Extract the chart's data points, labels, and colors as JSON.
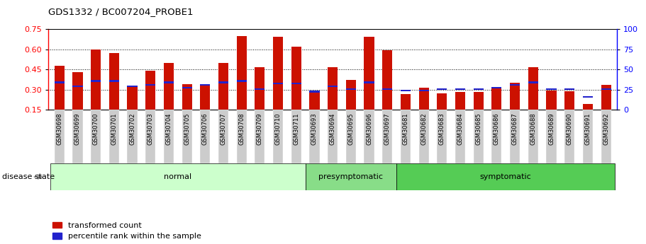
{
  "title": "GDS1332 / BC007204_PROBE1",
  "samples": [
    "GSM30698",
    "GSM30699",
    "GSM30700",
    "GSM30701",
    "GSM30702",
    "GSM30703",
    "GSM30704",
    "GSM30705",
    "GSM30706",
    "GSM30707",
    "GSM30708",
    "GSM30709",
    "GSM30710",
    "GSM30711",
    "GSM30693",
    "GSM30694",
    "GSM30695",
    "GSM30696",
    "GSM30697",
    "GSM30681",
    "GSM30682",
    "GSM30683",
    "GSM30684",
    "GSM30685",
    "GSM30686",
    "GSM30687",
    "GSM30688",
    "GSM30689",
    "GSM30690",
    "GSM30691",
    "GSM30692"
  ],
  "red_values": [
    0.48,
    0.43,
    0.6,
    0.575,
    0.33,
    0.44,
    0.5,
    0.34,
    0.33,
    0.5,
    0.7,
    0.47,
    0.695,
    0.62,
    0.295,
    0.47,
    0.375,
    0.695,
    0.595,
    0.265,
    0.315,
    0.275,
    0.285,
    0.285,
    0.315,
    0.35,
    0.47,
    0.295,
    0.29,
    0.195,
    0.335
  ],
  "blue_values": [
    0.355,
    0.325,
    0.365,
    0.365,
    0.325,
    0.335,
    0.355,
    0.315,
    0.335,
    0.355,
    0.365,
    0.305,
    0.345,
    0.345,
    0.285,
    0.325,
    0.305,
    0.355,
    0.305,
    0.295,
    0.295,
    0.305,
    0.305,
    0.305,
    0.315,
    0.335,
    0.355,
    0.305,
    0.305,
    0.245,
    0.305
  ],
  "groups": [
    {
      "label": "normal",
      "start": 0,
      "end": 14,
      "color": "#ccffcc"
    },
    {
      "label": "presymptomatic",
      "start": 14,
      "end": 19,
      "color": "#88dd88"
    },
    {
      "label": "symptomatic",
      "start": 19,
      "end": 31,
      "color": "#55cc55"
    }
  ],
  "ylim_left": [
    0.15,
    0.75
  ],
  "ylim_right": [
    0,
    100
  ],
  "yticks_left": [
    0.15,
    0.3,
    0.45,
    0.6,
    0.75
  ],
  "yticks_right": [
    0,
    25,
    50,
    75,
    100
  ],
  "bar_color": "#cc1100",
  "blue_color": "#2222cc",
  "legend_red": "transformed count",
  "legend_blue": "percentile rank within the sample",
  "disease_state_label": "disease state",
  "bar_width": 0.55,
  "blue_bar_height": 0.013,
  "baseline": 0.15
}
